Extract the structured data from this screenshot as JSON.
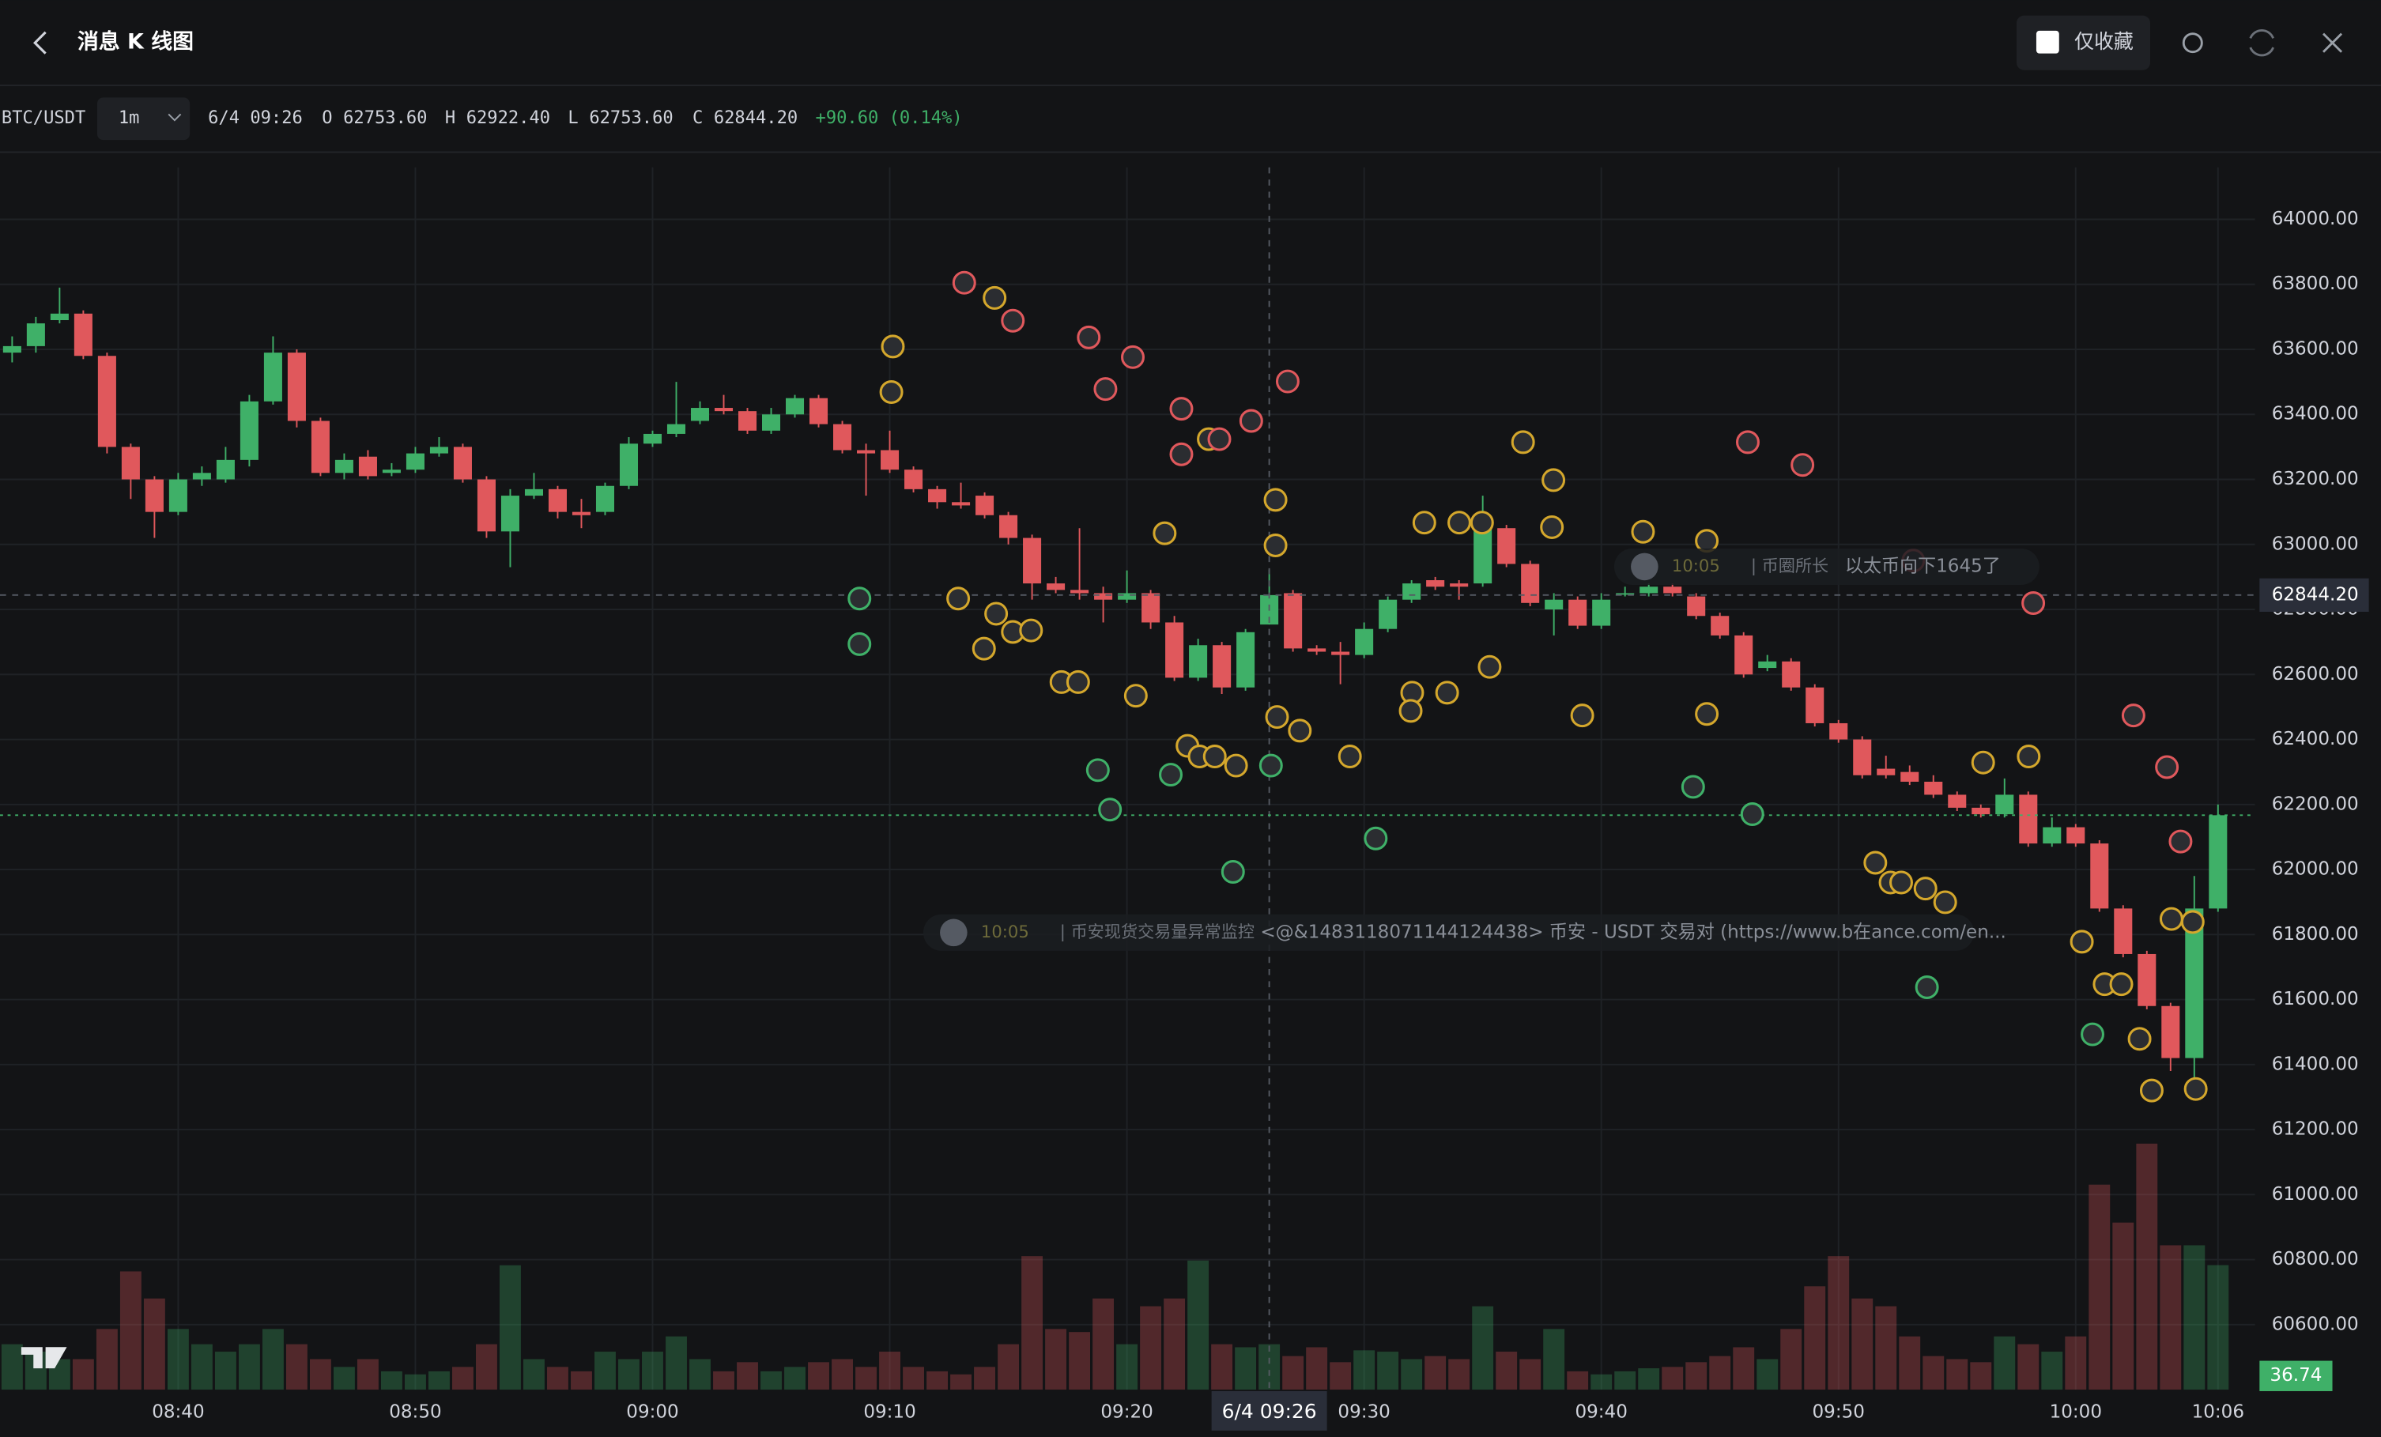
{
  "header": {
    "title": "消息 K 线图",
    "favorites_only": "仅收藏"
  },
  "legend": {
    "symbol": "BTC/USDT",
    "interval": "1m",
    "time": "6/4 09:26",
    "o_label": "O",
    "open": "62753.60",
    "h_label": "H",
    "high": "62922.40",
    "l_label": "L",
    "low": "62753.60",
    "c_label": "C",
    "close": "62844.20",
    "change": "+90.60 (0.14%)"
  },
  "messages": [
    {
      "time": "10:05",
      "source": "| 币圈所长",
      "text": "以太币向下1645了"
    },
    {
      "time": "10:05",
      "source": "| 币安现货交易量异常监控",
      "text": "<@&1483118071144124438> 币安 - USDT 交易对 (https://www.b在ance.com/en..."
    }
  ],
  "chart_data": {
    "type": "candlestick",
    "categories": [
      null,
      null,
      null,
      null,
      null,
      null,
      null,
      "08:40",
      null,
      null,
      null,
      null,
      null,
      null,
      null,
      null,
      null,
      "08:50",
      null,
      null,
      null,
      null,
      null,
      null,
      null,
      null,
      null,
      "09:00",
      null,
      null,
      null,
      null,
      null,
      null,
      null,
      null,
      null,
      "09:10",
      null,
      null,
      null,
      null,
      null,
      null,
      null,
      null,
      null,
      "09:20",
      null,
      null,
      null,
      null,
      null,
      "6/4 09:26",
      null,
      null,
      null,
      "09:30",
      null,
      null,
      null,
      null,
      null,
      null,
      null,
      null,
      null,
      "09:40",
      null,
      null,
      null,
      null,
      null,
      null,
      null,
      null,
      null,
      "09:50",
      null,
      null,
      null,
      null,
      null,
      null,
      null,
      null,
      null,
      "10:00",
      null,
      null,
      null,
      null,
      null,
      "10:06"
    ],
    "open": [
      63590,
      63610,
      63690,
      63710,
      63580,
      63300,
      63200,
      63100,
      63200,
      63200,
      63260,
      63440,
      63590,
      63380,
      63220,
      63270,
      63220,
      63230,
      63280,
      63300,
      63200,
      63040,
      63150,
      63170,
      63100,
      63100,
      63180,
      63310,
      63340,
      63380,
      63420,
      63410,
      63350,
      63400,
      63450,
      63370,
      63290,
      63290,
      63230,
      63170,
      63130,
      63150,
      63090,
      63020,
      62880,
      62860,
      62850,
      62830,
      62850,
      62760,
      62590,
      62690,
      62560,
      62753.6,
      62850,
      62680,
      62670,
      62660,
      62740,
      62830,
      62890,
      62880,
      62880,
      63050,
      62940,
      62800,
      62830,
      62750,
      62850,
      62850,
      62870,
      62840,
      62780,
      62720,
      62620,
      62640,
      62560,
      62450,
      62400,
      62310,
      62300,
      62270,
      62230,
      62190,
      62170,
      62230,
      62080,
      62130,
      62080,
      61880,
      61740,
      61580,
      61420,
      61880
    ],
    "high": [
      63640,
      63700,
      63790,
      63720,
      63590,
      63310,
      63210,
      63220,
      63240,
      63300,
      63460,
      63640,
      63600,
      63390,
      63280,
      63290,
      63250,
      63300,
      63330,
      63310,
      63210,
      63170,
      63220,
      63180,
      63140,
      63190,
      63330,
      63350,
      63500,
      63440,
      63460,
      63420,
      63420,
      63460,
      63460,
      63380,
      63310,
      63350,
      63240,
      63180,
      63190,
      63160,
      63100,
      63030,
      62900,
      63050,
      62870,
      62920,
      62860,
      62780,
      62710,
      62700,
      62740,
      62922.4,
      62860,
      62690,
      62700,
      62760,
      62840,
      62890,
      62900,
      62890,
      63150,
      63060,
      62950,
      62850,
      62840,
      62850,
      62870,
      62880,
      62880,
      62850,
      62790,
      62730,
      62660,
      62650,
      62570,
      62460,
      62410,
      62350,
      62320,
      62290,
      62240,
      62200,
      62280,
      62240,
      62160,
      62140,
      62090,
      61890,
      61750,
      61590,
      61980,
      62200
    ],
    "low": [
      63560,
      63590,
      63680,
      63570,
      63280,
      63140,
      63020,
      63090,
      63180,
      63190,
      63240,
      63430,
      63360,
      63210,
      63200,
      63200,
      63210,
      63220,
      63270,
      63190,
      63020,
      62930,
      63140,
      63080,
      63050,
      63090,
      63170,
      63300,
      63330,
      63370,
      63400,
      63340,
      63340,
      63390,
      63360,
      63280,
      63150,
      63220,
      63160,
      63110,
      63110,
      63080,
      63000,
      62830,
      62850,
      62830,
      62760,
      62820,
      62740,
      62580,
      62580,
      62540,
      62550,
      62753.6,
      62670,
      62660,
      62570,
      62650,
      62730,
      62820,
      62860,
      62830,
      62870,
      62930,
      62810,
      62720,
      62740,
      62740,
      62840,
      62840,
      62840,
      62770,
      62710,
      62590,
      62610,
      62550,
      62440,
      62390,
      62280,
      62280,
      62260,
      62220,
      62180,
      62160,
      62160,
      62070,
      62070,
      62070,
      61870,
      61730,
      61570,
      61380,
      61350,
      61870
    ],
    "close": [
      63610,
      63680,
      63710,
      63580,
      63300,
      63200,
      63100,
      63200,
      63220,
      63260,
      63440,
      63590,
      63380,
      63220,
      63260,
      63210,
      63230,
      63280,
      63300,
      63200,
      63040,
      63150,
      63170,
      63100,
      63090,
      63180,
      63310,
      63340,
      63370,
      63420,
      63410,
      63350,
      63400,
      63450,
      63370,
      63290,
      63280,
      63230,
      63170,
      63130,
      63120,
      63090,
      63020,
      62880,
      62860,
      62850,
      62830,
      62850,
      62760,
      62590,
      62690,
      62560,
      62730,
      62844.2,
      62680,
      62670,
      62660,
      62740,
      62830,
      62880,
      62870,
      62870,
      63050,
      62940,
      62820,
      62830,
      62750,
      62830,
      62850,
      62870,
      62850,
      62780,
      62720,
      62600,
      62640,
      62560,
      62450,
      62400,
      62290,
      62290,
      62270,
      62230,
      62190,
      62170,
      62230,
      62080,
      62130,
      62080,
      61880,
      61740,
      61580,
      61420,
      61880,
      62167
    ],
    "volume": [
      13.4,
      11.2,
      9.0,
      9.0,
      17.9,
      34.9,
      26.9,
      17.9,
      13.4,
      11.2,
      13.4,
      17.9,
      13.4,
      9.0,
      6.7,
      9.0,
      5.4,
      4.5,
      5.4,
      6.7,
      13.4,
      36.7,
      9.0,
      6.7,
      5.4,
      11.2,
      9.0,
      11.2,
      15.7,
      9.0,
      5.4,
      8.1,
      5.4,
      6.7,
      8.1,
      9.0,
      6.7,
      11.2,
      6.7,
      5.4,
      4.5,
      6.7,
      13.4,
      39.4,
      17.9,
      17.0,
      26.9,
      13.4,
      24.6,
      26.9,
      38.1,
      13.4,
      12.5,
      13.4,
      9.9,
      12.5,
      8.1,
      11.6,
      11.2,
      9.0,
      9.9,
      9.0,
      24.6,
      11.2,
      9.0,
      17.9,
      5.4,
      4.5,
      5.4,
      6.3,
      6.7,
      8.1,
      9.9,
      12.5,
      9.0,
      17.9,
      30.5,
      39.4,
      26.9,
      24.6,
      15.7,
      9.9,
      9.0,
      8.1,
      15.7,
      13.4,
      11.2,
      15.7,
      60.5,
      49.3,
      72.6,
      42.6,
      42.6,
      36.74
    ],
    "up_color": "#3fb068",
    "down_color": "#e0585c",
    "ylim": [
      60400,
      64160
    ],
    "yticks": [
      {
        "value": 64000,
        "label": "64000.00"
      },
      {
        "value": 63800,
        "label": "63800.00"
      },
      {
        "value": 63600,
        "label": "63600.00"
      },
      {
        "value": 63400,
        "label": "63400.00"
      },
      {
        "value": 63200,
        "label": "63200.00"
      },
      {
        "value": 63000,
        "label": "63000.00"
      },
      {
        "value": 62800,
        "label": "62800.00"
      },
      {
        "value": 62600,
        "label": "62600.00"
      },
      {
        "value": 62400,
        "label": "62400.00"
      },
      {
        "value": 62200,
        "label": "62200.00"
      },
      {
        "value": 62000,
        "label": "62000.00"
      },
      {
        "value": 61800,
        "label": "61800.00"
      },
      {
        "value": 61600,
        "label": "61600.00"
      },
      {
        "value": 61400,
        "label": "61400.00"
      },
      {
        "value": 61200,
        "label": "61200.00"
      },
      {
        "value": 61000,
        "label": "61000.00"
      },
      {
        "value": 60800,
        "label": "60800.00"
      },
      {
        "value": 60600,
        "label": "60600.00"
      }
    ],
    "grid": true
  }
}
